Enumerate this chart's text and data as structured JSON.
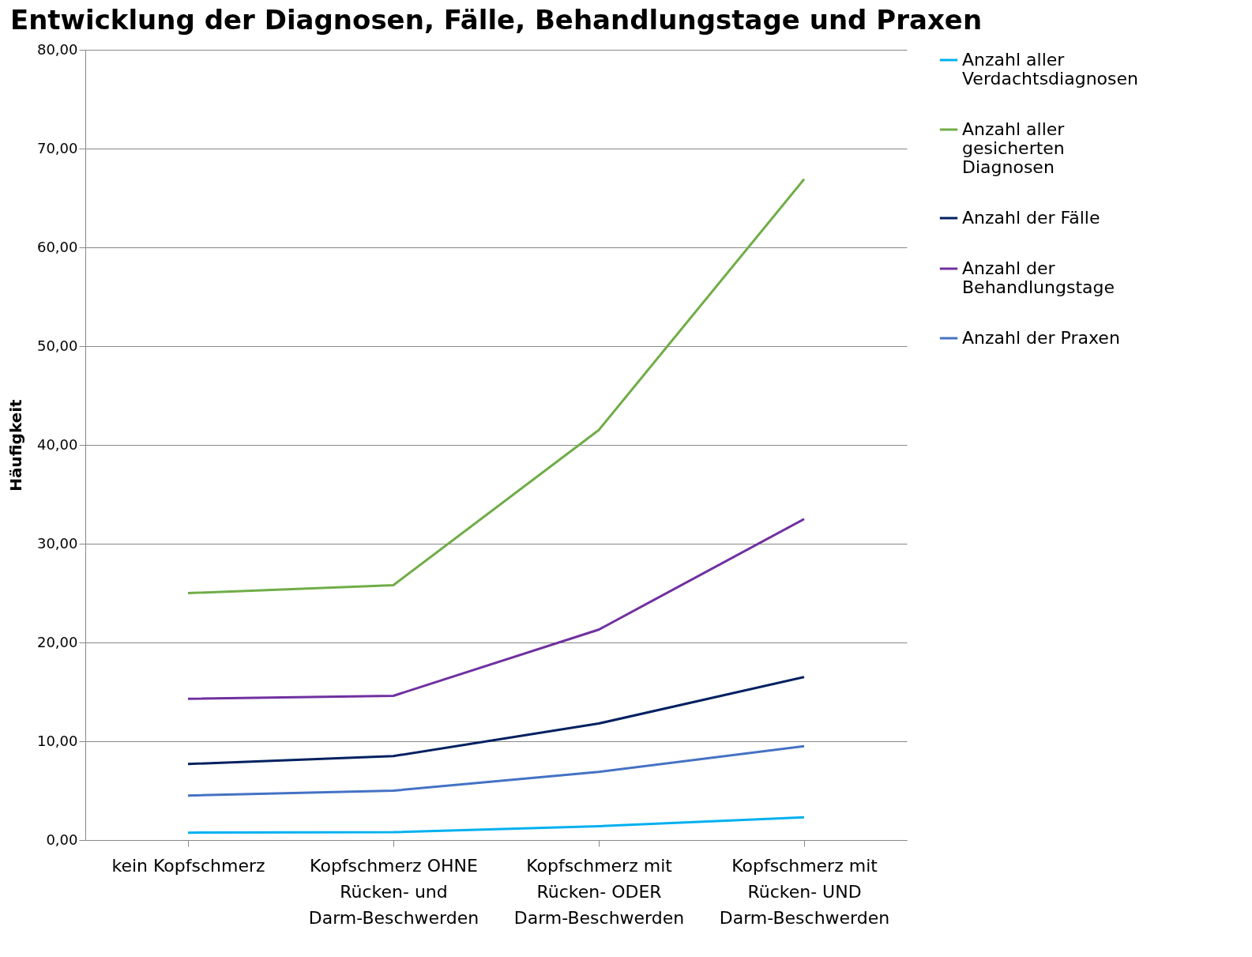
{
  "chart_data": {
    "type": "line",
    "title": "Entwicklung der Diagnosen, Fälle, Behandlungstage und Praxen",
    "ylabel": "Häufigkeit",
    "categories": [
      "kein Kopfschmerz",
      "Kopfschmerz OHNE Rücken- und Darm-Beschwerden",
      "Kopfschmerz mit Rücken- ODER Darm-Beschwerden",
      "Kopfschmerz mit Rücken- UND Darm-Beschwerden"
    ],
    "series": [
      {
        "name": "Anzahl aller Verdachtsdiagnosen",
        "color": "#00b0f0",
        "values": [
          0.75,
          0.8,
          1.4,
          2.3
        ]
      },
      {
        "name": "Anzahl aller gesicherten Diagnosen",
        "color": "#70ad47",
        "values": [
          25.0,
          25.8,
          41.5,
          66.9
        ]
      },
      {
        "name": "Anzahl der Fälle",
        "color": "#002060",
        "values": [
          7.7,
          8.5,
          11.8,
          16.5
        ]
      },
      {
        "name": "Anzahl der Behandlungstage",
        "color": "#7030a0",
        "values": [
          14.3,
          14.6,
          21.3,
          32.5
        ]
      },
      {
        "name": "Anzahl der Praxen",
        "color": "#4472c4",
        "values": [
          4.5,
          5.0,
          6.9,
          9.5
        ]
      }
    ],
    "ylim": [
      0,
      80
    ],
    "yticks": [
      {
        "value": 0,
        "label": "0,00"
      },
      {
        "value": 10,
        "label": "10,00"
      },
      {
        "value": 20,
        "label": "20,00"
      },
      {
        "value": 30,
        "label": "30,00"
      },
      {
        "value": 40,
        "label": "40,00"
      },
      {
        "value": 50,
        "label": "50,00"
      },
      {
        "value": 60,
        "label": "60,00"
      },
      {
        "value": 70,
        "label": "70,00"
      },
      {
        "value": 80,
        "label": "80,00"
      }
    ],
    "grid": "y",
    "legend": "right",
    "marker": "none",
    "line_style": "solid"
  }
}
